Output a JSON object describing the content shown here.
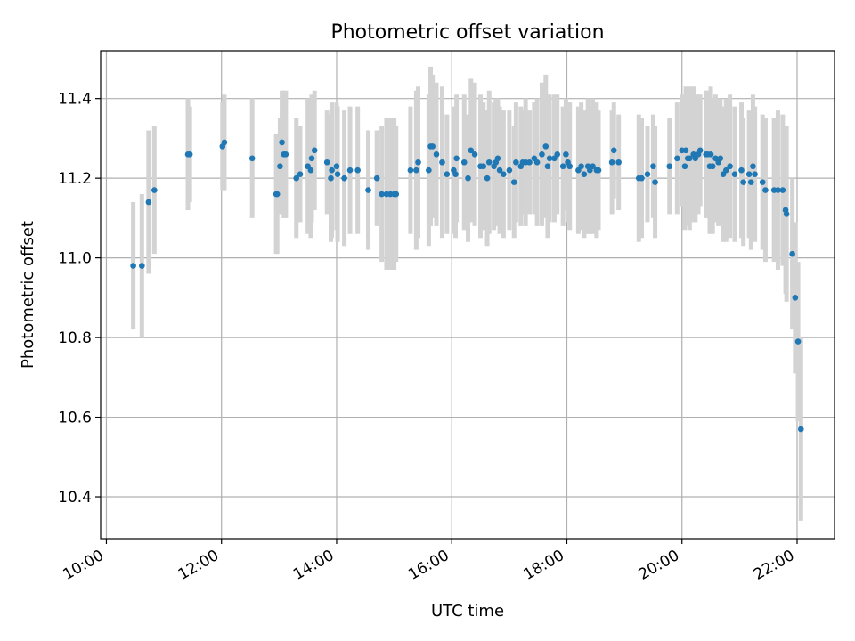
{
  "chart_data": {
    "type": "scatter",
    "title": "Photometric offset variation",
    "xlabel": "UTC time",
    "ylabel": "Photometric offset",
    "x_is_time": true,
    "xlim": [
      "09:54",
      "22:39"
    ],
    "ylim": [
      10.295,
      11.52
    ],
    "xticks": [
      "10:00",
      "12:00",
      "14:00",
      "16:00",
      "18:00",
      "20:00",
      "22:00"
    ],
    "yticks": [
      10.4,
      10.6,
      10.8,
      11.0,
      11.2,
      11.4
    ],
    "ytick_labels": [
      "10.4",
      "10.6",
      "10.8",
      "11.0",
      "11.2",
      "11.4"
    ],
    "grid": true,
    "marker_color": "#1f77b4",
    "errorbar_color": "#d3d3d3",
    "series": [
      {
        "points": [
          [
            "10:28",
            10.98,
            0.16
          ],
          [
            "10:37",
            10.98,
            0.18
          ],
          [
            "10:44",
            11.14,
            0.18
          ],
          [
            "10:50",
            11.17,
            0.16
          ],
          [
            "11:25",
            11.26,
            0.14
          ],
          [
            "11:27",
            11.26,
            0.12
          ],
          [
            "12:01",
            11.28,
            0.11
          ],
          [
            "12:03",
            11.29,
            0.12
          ],
          [
            "12:32",
            11.25,
            0.15
          ],
          [
            "12:57",
            11.16,
            0.15
          ],
          [
            "12:58",
            11.16,
            0.15
          ],
          [
            "13:01",
            11.23,
            0.12
          ],
          [
            "13:03",
            11.29,
            0.13
          ],
          [
            "13:05",
            11.26,
            0.16
          ],
          [
            "13:07",
            11.26,
            0.16
          ],
          [
            "13:18",
            11.2,
            0.15
          ],
          [
            "13:22",
            11.21,
            0.12
          ],
          [
            "13:30",
            11.23,
            0.17
          ],
          [
            "13:33",
            11.22,
            0.17
          ],
          [
            "13:34",
            11.25,
            0.16
          ],
          [
            "13:37",
            11.27,
            0.15
          ],
          [
            "13:50",
            11.24,
            0.13
          ],
          [
            "13:54",
            11.2,
            0.16
          ],
          [
            "13:55",
            11.22,
            0.17
          ],
          [
            "14:00",
            11.23,
            0.16
          ],
          [
            "14:01",
            11.21,
            0.17
          ],
          [
            "14:08",
            11.2,
            0.17
          ],
          [
            "14:14",
            11.22,
            0.16
          ],
          [
            "14:22",
            11.22,
            0.16
          ],
          [
            "14:33",
            11.17,
            0.15
          ],
          [
            "14:42",
            11.2,
            0.12
          ],
          [
            "14:47",
            11.16,
            0.17
          ],
          [
            "14:52",
            11.16,
            0.19
          ],
          [
            "14:56",
            11.16,
            0.19
          ],
          [
            "15:00",
            11.16,
            0.19
          ],
          [
            "15:02",
            11.16,
            0.17
          ],
          [
            "15:17",
            11.22,
            0.16
          ],
          [
            "15:23",
            11.22,
            0.2
          ],
          [
            "15:25",
            11.24,
            0.19
          ],
          [
            "15:36",
            11.22,
            0.19
          ],
          [
            "15:38",
            11.28,
            0.2
          ],
          [
            "15:40",
            11.28,
            0.18
          ],
          [
            "15:44",
            11.26,
            0.18
          ],
          [
            "15:50",
            11.24,
            0.19
          ],
          [
            "15:55",
            11.21,
            0.15
          ],
          [
            "16:02",
            11.22,
            0.16
          ],
          [
            "16:04",
            11.21,
            0.16
          ],
          [
            "16:05",
            11.25,
            0.16
          ],
          [
            "16:13",
            11.24,
            0.17
          ],
          [
            "16:17",
            11.2,
            0.16
          ],
          [
            "16:20",
            11.27,
            0.18
          ],
          [
            "16:24",
            11.26,
            0.18
          ],
          [
            "16:30",
            11.23,
            0.18
          ],
          [
            "16:33",
            11.23,
            0.16
          ],
          [
            "16:37",
            11.2,
            0.17
          ],
          [
            "16:39",
            11.24,
            0.18
          ],
          [
            "16:44",
            11.23,
            0.16
          ],
          [
            "16:46",
            11.24,
            0.16
          ],
          [
            "16:48",
            11.25,
            0.15
          ],
          [
            "16:50",
            11.22,
            0.16
          ],
          [
            "16:54",
            11.21,
            0.16
          ],
          [
            "17:00",
            11.22,
            0.15
          ],
          [
            "17:05",
            11.19,
            0.14
          ],
          [
            "17:07",
            11.24,
            0.15
          ],
          [
            "17:12",
            11.23,
            0.15
          ],
          [
            "17:14",
            11.24,
            0.13
          ],
          [
            "17:17",
            11.24,
            0.16
          ],
          [
            "17:21",
            11.24,
            0.13
          ],
          [
            "17:26",
            11.25,
            0.14
          ],
          [
            "17:29",
            11.24,
            0.16
          ],
          [
            "17:34",
            11.26,
            0.18
          ],
          [
            "17:38",
            11.28,
            0.18
          ],
          [
            "17:40",
            11.23,
            0.18
          ],
          [
            "17:42",
            11.25,
            0.16
          ],
          [
            "17:47",
            11.25,
            0.16
          ],
          [
            "17:50",
            11.26,
            0.15
          ],
          [
            "17:56",
            11.23,
            0.15
          ],
          [
            "17:59",
            11.26,
            0.14
          ],
          [
            "18:01",
            11.24,
            0.15
          ],
          [
            "18:03",
            11.23,
            0.16
          ],
          [
            "18:12",
            11.22,
            0.16
          ],
          [
            "18:15",
            11.23,
            0.16
          ],
          [
            "18:18",
            11.21,
            0.16
          ],
          [
            "18:22",
            11.23,
            0.17
          ],
          [
            "18:24",
            11.22,
            0.16
          ],
          [
            "18:27",
            11.23,
            0.17
          ],
          [
            "18:31",
            11.22,
            0.17
          ],
          [
            "18:33",
            11.22,
            0.15
          ],
          [
            "18:47",
            11.24,
            0.13
          ],
          [
            "18:49",
            11.27,
            0.12
          ],
          [
            "18:54",
            11.24,
            0.12
          ],
          [
            "19:15",
            11.2,
            0.16
          ],
          [
            "19:18",
            11.2,
            0.15
          ],
          [
            "19:24",
            11.21,
            0.12
          ],
          [
            "19:30",
            11.23,
            0.13
          ],
          [
            "19:32",
            11.19,
            0.14
          ],
          [
            "19:47",
            11.23,
            0.12
          ],
          [
            "19:55",
            11.25,
            0.14
          ],
          [
            "20:00",
            11.27,
            0.14
          ],
          [
            "20:03",
            11.23,
            0.16
          ],
          [
            "20:04",
            11.27,
            0.16
          ],
          [
            "20:06",
            11.25,
            0.17
          ],
          [
            "20:08",
            11.25,
            0.18
          ],
          [
            "20:12",
            11.26,
            0.17
          ],
          [
            "20:14",
            11.25,
            0.16
          ],
          [
            "20:17",
            11.26,
            0.15
          ],
          [
            "20:19",
            11.27,
            0.14
          ],
          [
            "20:25",
            11.26,
            0.16
          ],
          [
            "20:27",
            11.26,
            0.16
          ],
          [
            "20:29",
            11.23,
            0.17
          ],
          [
            "20:30",
            11.26,
            0.17
          ],
          [
            "20:32",
            11.23,
            0.17
          ],
          [
            "20:35",
            11.25,
            0.16
          ],
          [
            "20:38",
            11.24,
            0.16
          ],
          [
            "20:40",
            11.25,
            0.15
          ],
          [
            "20:43",
            11.21,
            0.17
          ],
          [
            "20:46",
            11.22,
            0.18
          ],
          [
            "20:50",
            11.23,
            0.18
          ],
          [
            "20:55",
            11.21,
            0.17
          ],
          [
            "21:02",
            11.22,
            0.17
          ],
          [
            "21:04",
            11.19,
            0.16
          ],
          [
            "21:10",
            11.21,
            0.16
          ],
          [
            "21:12",
            11.19,
            0.17
          ],
          [
            "21:14",
            11.23,
            0.18
          ],
          [
            "21:16",
            11.21,
            0.17
          ],
          [
            "21:24",
            11.19,
            0.17
          ],
          [
            "21:27",
            11.17,
            0.18
          ],
          [
            "21:36",
            11.17,
            0.18
          ],
          [
            "21:40",
            11.17,
            0.2
          ],
          [
            "21:45",
            11.17,
            0.19
          ],
          [
            "21:48",
            11.12,
            0.21
          ],
          [
            "21:49",
            11.11,
            0.22
          ],
          [
            "21:55",
            11.01,
            0.19
          ],
          [
            "21:58",
            10.9,
            0.19
          ],
          [
            "22:01",
            10.79,
            0.2
          ],
          [
            "22:04",
            10.57,
            0.23
          ]
        ]
      }
    ]
  }
}
